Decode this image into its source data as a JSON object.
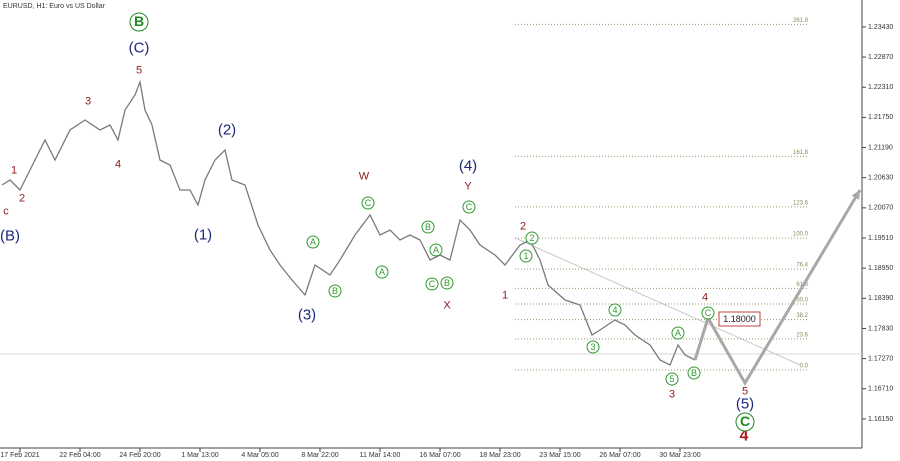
{
  "chart_data": {
    "type": "line",
    "title": "EURUSD, H1:  Euro vs US Dollar",
    "color": "#7a7a7a",
    "x": [
      1,
      5,
      10,
      15,
      22.5,
      27.5,
      35,
      42.5,
      50,
      55,
      59,
      62.5,
      67.5,
      70,
      72.5,
      76,
      80,
      85,
      90,
      95,
      99,
      102.5,
      107.5,
      112.5,
      116,
      122.5,
      129,
      135,
      140,
      146,
      152.5,
      157.5,
      165,
      170,
      177.5,
      185,
      190,
      195,
      200,
      205,
      210,
      215,
      220,
      225,
      230,
      235,
      240,
      247.5,
      252.5,
      260,
      265,
      270,
      274,
      282.5,
      290,
      296,
      300,
      307.5,
      312.5,
      317.5,
      325,
      330,
      335,
      339,
      342.5,
      347.5
    ],
    "values": [
      1.20495,
      1.20587,
      1.20402,
      1.20773,
      1.2133,
      1.20959,
      1.21516,
      1.21702,
      1.21516,
      1.21609,
      1.2133,
      1.21887,
      1.22166,
      1.22407,
      1.21887,
      1.21609,
      1.20959,
      1.20866,
      1.20402,
      1.20402,
      1.20123,
      1.20587,
      1.20959,
      1.21144,
      1.20587,
      1.20495,
      1.19752,
      1.19287,
      1.19009,
      1.1873,
      1.18452,
      1.19009,
      1.18823,
      1.19102,
      1.19566,
      1.19937,
      1.19566,
      1.19659,
      1.19473,
      1.19566,
      1.19473,
      1.19102,
      1.19195,
      1.19102,
      1.19845,
      1.19659,
      1.1938,
      1.19195,
      1.19009,
      1.1938,
      1.19473,
      1.19102,
      1.18638,
      1.18359,
      1.18266,
      1.17709,
      1.17802,
      1.17988,
      1.17895,
      1.17709,
      1.17523,
      1.17245,
      1.17152,
      1.17523,
      1.17338,
      1.17245
    ],
    "projection": {
      "color": "#a8a8a8",
      "x": [
        347.5,
        354,
        372.5,
        430
      ],
      "values": [
        1.17245,
        1.18025,
        1.16818,
        1.20402
      ]
    },
    "xlim": [
      0,
      430
    ],
    "xticks": [
      {
        "value": 10,
        "label": "17 Feb 2021"
      },
      {
        "value": 40,
        "label": "22 Feb 04:00"
      },
      {
        "value": 70,
        "label": "24 Feb 20:00"
      },
      {
        "value": 100,
        "label": "1 Mar 13:00"
      },
      {
        "value": 130,
        "label": "4 Mar 05:00"
      },
      {
        "value": 160,
        "label": "8 Mar 22:00"
      },
      {
        "value": 190,
        "label": "11 Mar 14:00"
      },
      {
        "value": 220,
        "label": "16 Mar 07:00"
      },
      {
        "value": 250,
        "label": "18 Mar 23:00"
      },
      {
        "value": 280,
        "label": "23 Mar 15:00"
      },
      {
        "value": 310,
        "label": "26 Mar 07:00"
      },
      {
        "value": 340,
        "label": "30 Mar 23:00"
      }
    ],
    "ylim": [
      1.1561,
      1.2393
    ],
    "yticks": [
      {
        "value": 1.1615,
        "label": "1.16150"
      },
      {
        "value": 1.1671,
        "label": "1.16710"
      },
      {
        "value": 1.1727,
        "label": "1.17270"
      },
      {
        "value": 1.1783,
        "label": "1.17830"
      },
      {
        "value": 1.1839,
        "label": "1.18390"
      },
      {
        "value": 1.1895,
        "label": "1.18950"
      },
      {
        "value": 1.1951,
        "label": "1.19510"
      },
      {
        "value": 1.2007,
        "label": "1.20070"
      },
      {
        "value": 1.2063,
        "label": "1.20630"
      },
      {
        "value": 1.2119,
        "label": "1.21190"
      },
      {
        "value": 1.2175,
        "label": "1.21750"
      },
      {
        "value": 1.2231,
        "label": "1.22310"
      },
      {
        "value": 1.2287,
        "label": "1.22870"
      },
      {
        "value": 1.2343,
        "label": "1.23430"
      }
    ],
    "fibonacci_levels": [
      261.8,
      161.8,
      123.6,
      {
        "value": 100,
        "label": "100.0"
      },
      76.4,
      61.8,
      {
        "value": 50,
        "label": "50.0"
      },
      38.2,
      23.6,
      {
        "value": 0,
        "label": "0.0"
      }
    ],
    "target_label": "1.18000",
    "annotations": [
      {
        "text": "c",
        "style": "red"
      },
      {
        "text": "1",
        "style": "red"
      },
      {
        "text": "2",
        "style": "red"
      },
      {
        "text": "3",
        "style": "red"
      },
      {
        "text": "4",
        "style": "red"
      },
      {
        "text": "5",
        "style": "red"
      },
      {
        "text": "W",
        "style": "red"
      },
      {
        "text": "Y",
        "style": "red"
      },
      {
        "text": "X",
        "style": "red"
      },
      {
        "text": "2",
        "style": "red"
      },
      {
        "text": "1",
        "style": "red"
      },
      {
        "text": "4",
        "style": "red"
      },
      {
        "text": "5",
        "style": "red"
      },
      {
        "text": "3",
        "style": "red"
      },
      {
        "text": "4",
        "style": "red-large"
      },
      {
        "text": "(B)",
        "style": "blue"
      },
      {
        "text": "(C)",
        "style": "blue"
      },
      {
        "text": "(2)",
        "style": "blue"
      },
      {
        "text": "(1)",
        "style": "blue"
      },
      {
        "text": "(3)",
        "style": "blue"
      },
      {
        "text": "(4)",
        "style": "blue"
      },
      {
        "text": "(5)",
        "style": "blue"
      },
      {
        "text": "B",
        "style": "green-large"
      },
      {
        "text": "A",
        "style": "green"
      },
      {
        "text": "B",
        "style": "green"
      },
      {
        "text": "A",
        "style": "green"
      },
      {
        "text": "C",
        "style": "green"
      },
      {
        "text": "B",
        "style": "green"
      },
      {
        "text": "A",
        "style": "green"
      },
      {
        "text": "C",
        "style": "green"
      },
      {
        "text": "B",
        "style": "green"
      },
      {
        "text": "C",
        "style": "green"
      },
      {
        "text": "2",
        "style": "green"
      },
      {
        "text": "1",
        "style": "green"
      },
      {
        "text": "3",
        "style": "green"
      },
      {
        "text": "4",
        "style": "green"
      },
      {
        "text": "A",
        "style": "green"
      },
      {
        "text": "C",
        "style": "green"
      },
      {
        "text": "5",
        "style": "green"
      },
      {
        "text": "B",
        "style": "green"
      },
      {
        "text": "C",
        "style": "green-large"
      }
    ]
  }
}
